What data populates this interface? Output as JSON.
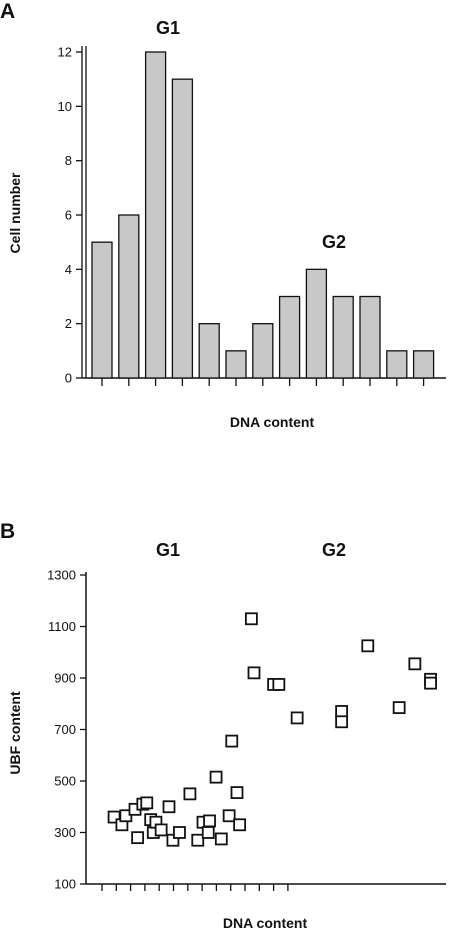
{
  "panels": {
    "a": {
      "letter": "A",
      "chart_data": {
        "type": "bar",
        "xlabel": "DNA content",
        "ylabel": "Cell number",
        "ylim": [
          0,
          12
        ],
        "yticks": [
          "0",
          "2",
          "4",
          "6",
          "8",
          "10",
          "12"
        ],
        "values": [
          5,
          6,
          12,
          11,
          2,
          1,
          2,
          3,
          4,
          3,
          3,
          1,
          1
        ],
        "bar_color": "#c8c8c8",
        "annotations": [
          "G1",
          "G2"
        ]
      }
    },
    "b": {
      "letter": "B",
      "chart_data": {
        "type": "scatter",
        "xlabel": "DNA content",
        "ylabel": "UBF content",
        "ylim": [
          100,
          1300
        ],
        "yticks": [
          "100",
          "300",
          "500",
          "700",
          "900",
          "1100",
          "1300"
        ],
        "xlim": [
          0,
          13
        ],
        "annotations": [
          "G1",
          "G2"
        ],
        "points": [
          {
            "x": 0.5,
            "y": 360
          },
          {
            "x": 0.8,
            "y": 330
          },
          {
            "x": 0.95,
            "y": 365
          },
          {
            "x": 1.3,
            "y": 390
          },
          {
            "x": 1.4,
            "y": 280
          },
          {
            "x": 1.6,
            "y": 410
          },
          {
            "x": 1.75,
            "y": 415
          },
          {
            "x": 1.9,
            "y": 350
          },
          {
            "x": 2.0,
            "y": 300
          },
          {
            "x": 2.1,
            "y": 340
          },
          {
            "x": 2.3,
            "y": 310
          },
          {
            "x": 2.6,
            "y": 400
          },
          {
            "x": 2.75,
            "y": 270
          },
          {
            "x": 3.0,
            "y": 300
          },
          {
            "x": 3.4,
            "y": 450
          },
          {
            "x": 3.7,
            "y": 270
          },
          {
            "x": 3.9,
            "y": 340
          },
          {
            "x": 4.1,
            "y": 300
          },
          {
            "x": 4.15,
            "y": 345
          },
          {
            "x": 4.4,
            "y": 515
          },
          {
            "x": 4.6,
            "y": 275
          },
          {
            "x": 4.9,
            "y": 365
          },
          {
            "x": 5.0,
            "y": 655
          },
          {
            "x": 5.2,
            "y": 455
          },
          {
            "x": 5.3,
            "y": 330
          },
          {
            "x": 5.75,
            "y": 1130
          },
          {
            "x": 5.85,
            "y": 920
          },
          {
            "x": 6.6,
            "y": 875
          },
          {
            "x": 6.8,
            "y": 875
          },
          {
            "x": 7.5,
            "y": 745
          },
          {
            "x": 9.2,
            "y": 770
          },
          {
            "x": 9.2,
            "y": 730
          },
          {
            "x": 10.2,
            "y": 1025
          },
          {
            "x": 11.4,
            "y": 785
          },
          {
            "x": 12.0,
            "y": 955
          },
          {
            "x": 12.6,
            "y": 895
          },
          {
            "x": 12.6,
            "y": 880
          }
        ]
      }
    }
  }
}
